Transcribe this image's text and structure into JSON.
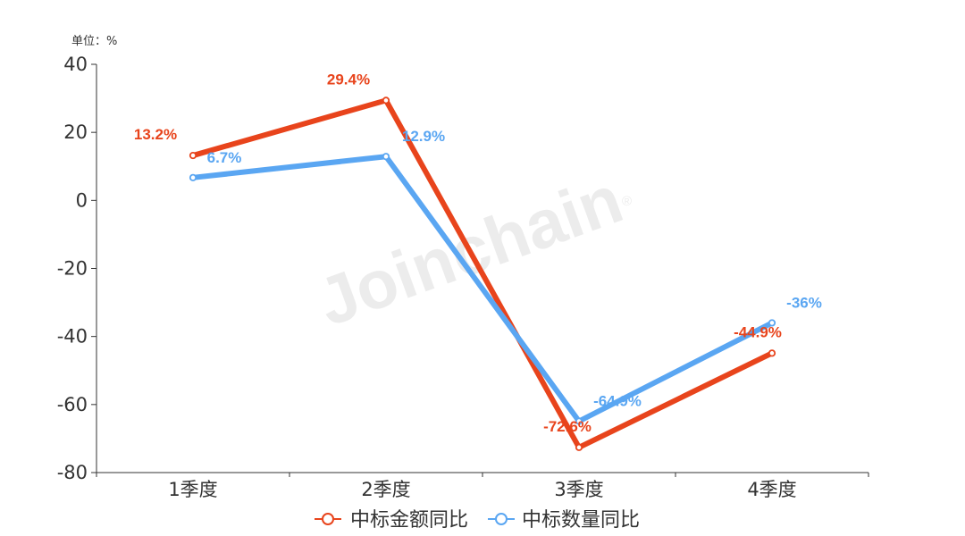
{
  "chart_data": {
    "type": "line",
    "unit_label": "单位：%",
    "watermark": "Joinchain",
    "watermark_mark": "®",
    "categories": [
      "1季度",
      "2季度",
      "3季度",
      "4季度"
    ],
    "ylim": [
      -80,
      40
    ],
    "yticks": [
      40,
      20,
      0,
      -20,
      -40,
      -60,
      -80
    ],
    "series": [
      {
        "name": "中标金额同比",
        "color": "#e8441c",
        "values": [
          13.2,
          29.4,
          -72.6,
          -44.9
        ],
        "labels": [
          "13.2%",
          "29.4%",
          "-72.6%",
          "-44.9%"
        ]
      },
      {
        "name": "中标数量同比",
        "color": "#5aa6f2",
        "values": [
          6.7,
          12.9,
          -64.9,
          -36
        ],
        "labels": [
          "6.7%",
          "12.9%",
          "-64.9%",
          "-36%"
        ]
      }
    ],
    "legend_position": "bottom-center"
  }
}
